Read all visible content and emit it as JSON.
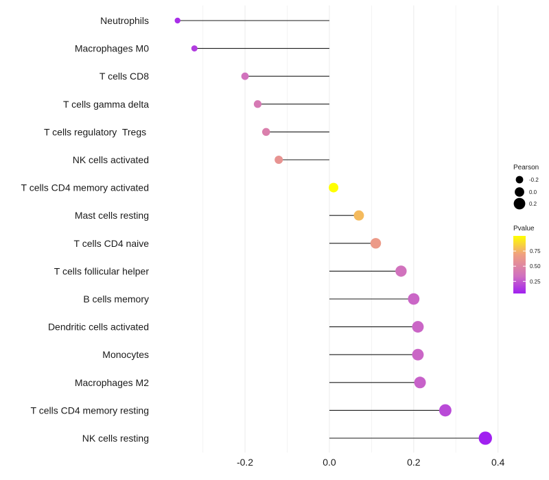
{
  "chart_data": {
    "type": "lollipop",
    "categories": [
      "Neutrophils",
      "Macrophages M0",
      "T cells CD8",
      "T cells gamma delta",
      "T cells regulatory  Tregs ",
      "NK cells activated",
      "T cells CD4 memory activated",
      "Mast cells resting",
      "T cells CD4 naive",
      "T cells follicular helper",
      "B cells memory",
      "Dendritic cells activated",
      "Monocytes",
      "Macrophages M2",
      "T cells CD4 memory resting",
      "NK cells resting"
    ],
    "values": [
      -0.36,
      -0.32,
      -0.2,
      -0.17,
      -0.15,
      -0.12,
      0.01,
      0.07,
      0.11,
      0.17,
      0.2,
      0.21,
      0.21,
      0.215,
      0.275,
      0.37
    ],
    "pvalues": [
      0.1,
      0.15,
      0.35,
      0.4,
      0.45,
      0.6,
      1.0,
      0.78,
      0.65,
      0.35,
      0.3,
      0.3,
      0.3,
      0.28,
      0.2,
      0.05
    ],
    "xticks": [
      -0.2,
      0.0,
      0.2,
      0.4
    ],
    "xtick_labels": [
      "-0.2",
      "0.0",
      "0.2",
      "0.4"
    ],
    "xlim": [
      -0.41,
      0.42
    ],
    "title": "",
    "xlabel": "",
    "ylabel": "",
    "grid": true,
    "legend": {
      "position": "right",
      "size_title": "Pearson",
      "size_entries": [
        {
          "label": "-0.2",
          "value": -0.2
        },
        {
          "label": "0.0",
          "value": 0.0
        },
        {
          "label": "0.2",
          "value": 0.2
        }
      ],
      "color_title": "Pvalue",
      "color_ticks": [
        {
          "label": "0.75",
          "value": 0.75
        },
        {
          "label": "0.50",
          "value": 0.5
        },
        {
          "label": "0.25",
          "value": 0.25
        }
      ],
      "color_range": [
        0.05,
        1.0
      ],
      "color_low": "#a020f0",
      "color_mid": "#d070c0",
      "color_midhigh": "#f0a080",
      "color_high": "#ffff00"
    }
  }
}
